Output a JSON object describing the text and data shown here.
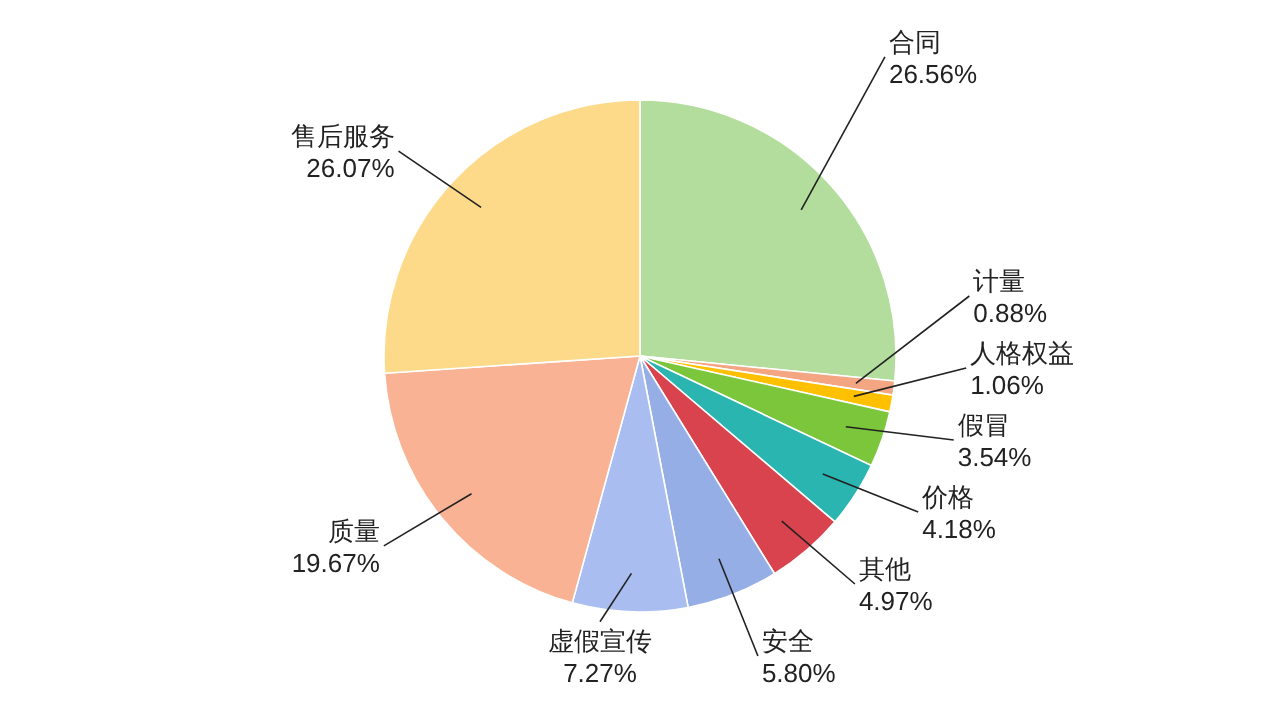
{
  "chart_data": {
    "type": "pie",
    "categories": [
      "合同",
      "计量",
      "人格权益",
      "假冒",
      "价格",
      "其他",
      "安全",
      "虚假宣传",
      "质量",
      "售后服务"
    ],
    "values": [
      26.56,
      0.88,
      1.06,
      3.54,
      4.18,
      4.97,
      5.8,
      7.27,
      19.67,
      26.07
    ],
    "value_labels": [
      "26.56%",
      "0.88%",
      "1.06%",
      "3.54%",
      "4.18%",
      "4.97%",
      "5.80%",
      "7.27%",
      "19.67%",
      "26.07%"
    ],
    "colors": [
      "#b3dd9c",
      "#f4a582",
      "#ffc000",
      "#7cc63c",
      "#2bb5b0",
      "#d9434e",
      "#95aee6",
      "#a9bdf0",
      "#f9b394",
      "#fdd98a"
    ]
  }
}
